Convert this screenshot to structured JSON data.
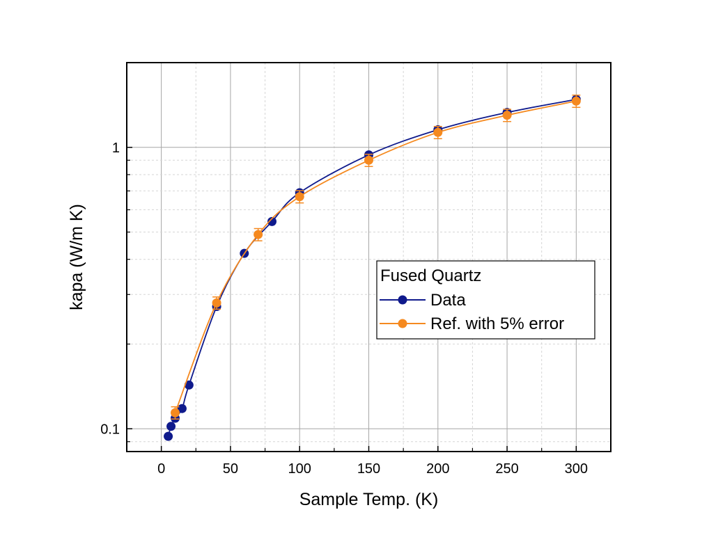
{
  "chart_data": {
    "type": "scatter",
    "xlabel": "Sample Temp. (K)",
    "ylabel": "kapa (W/m K)",
    "x_scale": "linear",
    "y_scale": "log",
    "xlim": [
      -25,
      325
    ],
    "ylim": [
      0.083,
      2.0
    ],
    "x_ticks": [
      0,
      50,
      100,
      150,
      200,
      250,
      300
    ],
    "x_tick_labels": [
      "0",
      "50",
      "100",
      "150",
      "200",
      "250",
      "300"
    ],
    "y_ticks": [
      0.1,
      1
    ],
    "y_tick_labels": [
      "0.1",
      "1"
    ],
    "grid": true,
    "legend": {
      "title": "Fused Quartz",
      "placement": "center-right"
    },
    "series": [
      {
        "name": "Data",
        "color": "#0f1a8c",
        "connected": true,
        "x": [
          5,
          7,
          10,
          15,
          20,
          40,
          60,
          80,
          100,
          150,
          200,
          250,
          300
        ],
        "y": [
          0.094,
          0.102,
          0.109,
          0.118,
          0.143,
          0.272,
          0.42,
          0.545,
          0.69,
          0.94,
          1.155,
          1.33,
          1.48
        ]
      },
      {
        "name": "Ref. with 5% error",
        "color": "#f5891f",
        "connected": true,
        "error_pct": 5,
        "x": [
          10,
          40,
          70,
          100,
          150,
          200,
          250,
          300
        ],
        "y": [
          0.114,
          0.28,
          0.49,
          0.668,
          0.9,
          1.13,
          1.3,
          1.46
        ]
      }
    ]
  }
}
